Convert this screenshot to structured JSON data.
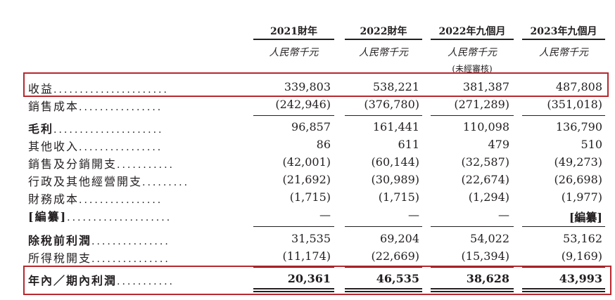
{
  "columns": [
    {
      "year": "2021財年",
      "unit": "人民幣千元",
      "note": ""
    },
    {
      "year": "2022財年",
      "unit": "人民幣千元",
      "note": ""
    },
    {
      "year": "2022年九個月",
      "unit": "人民幣千元",
      "note": "(未經審核)"
    },
    {
      "year": "2023年九個月",
      "unit": "人民幣千元",
      "note": ""
    }
  ],
  "rows": [
    {
      "label": "收益",
      "dots": "......................",
      "bold": false,
      "values": [
        "339,803",
        "538,221",
        "381,387",
        "487,808"
      ]
    },
    {
      "label": "銷售成本",
      "dots": "................",
      "bold": false,
      "values": [
        "(242,946)",
        "(376,780)",
        "(271,289)",
        "(351,018)"
      ]
    },
    {
      "label": "毛利",
      "dots": ".....................",
      "bold": true,
      "values": [
        "96,857",
        "161,441",
        "110,098",
        "136,790"
      ]
    },
    {
      "label": "其他收入",
      "dots": "................",
      "bold": false,
      "values": [
        "86",
        "611",
        "479",
        "510"
      ]
    },
    {
      "label": "銷售及分銷開支",
      "dots": "...........",
      "bold": false,
      "values": [
        "(42,001)",
        "(60,144)",
        "(32,587)",
        "(49,273)"
      ]
    },
    {
      "label": "行政及其他經營開支",
      "dots": ".........",
      "bold": false,
      "values": [
        "(21,692)",
        "(30,989)",
        "(22,674)",
        "(26,698)"
      ]
    },
    {
      "label": "財務成本",
      "dots": "................",
      "bold": false,
      "values": [
        "(1,715)",
        "(1,715)",
        "(1,294)",
        "(1,977)"
      ]
    },
    {
      "label": "[編纂]",
      "dots": "....................",
      "bold": true,
      "values": [
        "—",
        "—",
        "—",
        "[編纂]"
      ]
    },
    {
      "label": "除稅前利潤",
      "dots": "...............",
      "bold": true,
      "values": [
        "31,535",
        "69,204",
        "54,022",
        "53,162"
      ]
    },
    {
      "label": "所得稅開支",
      "dots": "...............",
      "bold": false,
      "values": [
        "(11,174)",
        "(22,669)",
        "(15,394)",
        "(9,169)"
      ]
    },
    {
      "label": "年內／期內利潤",
      "dots": "...........",
      "bold": true,
      "values": [
        "20,361",
        "46,535",
        "38,628",
        "43,993"
      ]
    }
  ],
  "highlight_color": "#b7282e"
}
